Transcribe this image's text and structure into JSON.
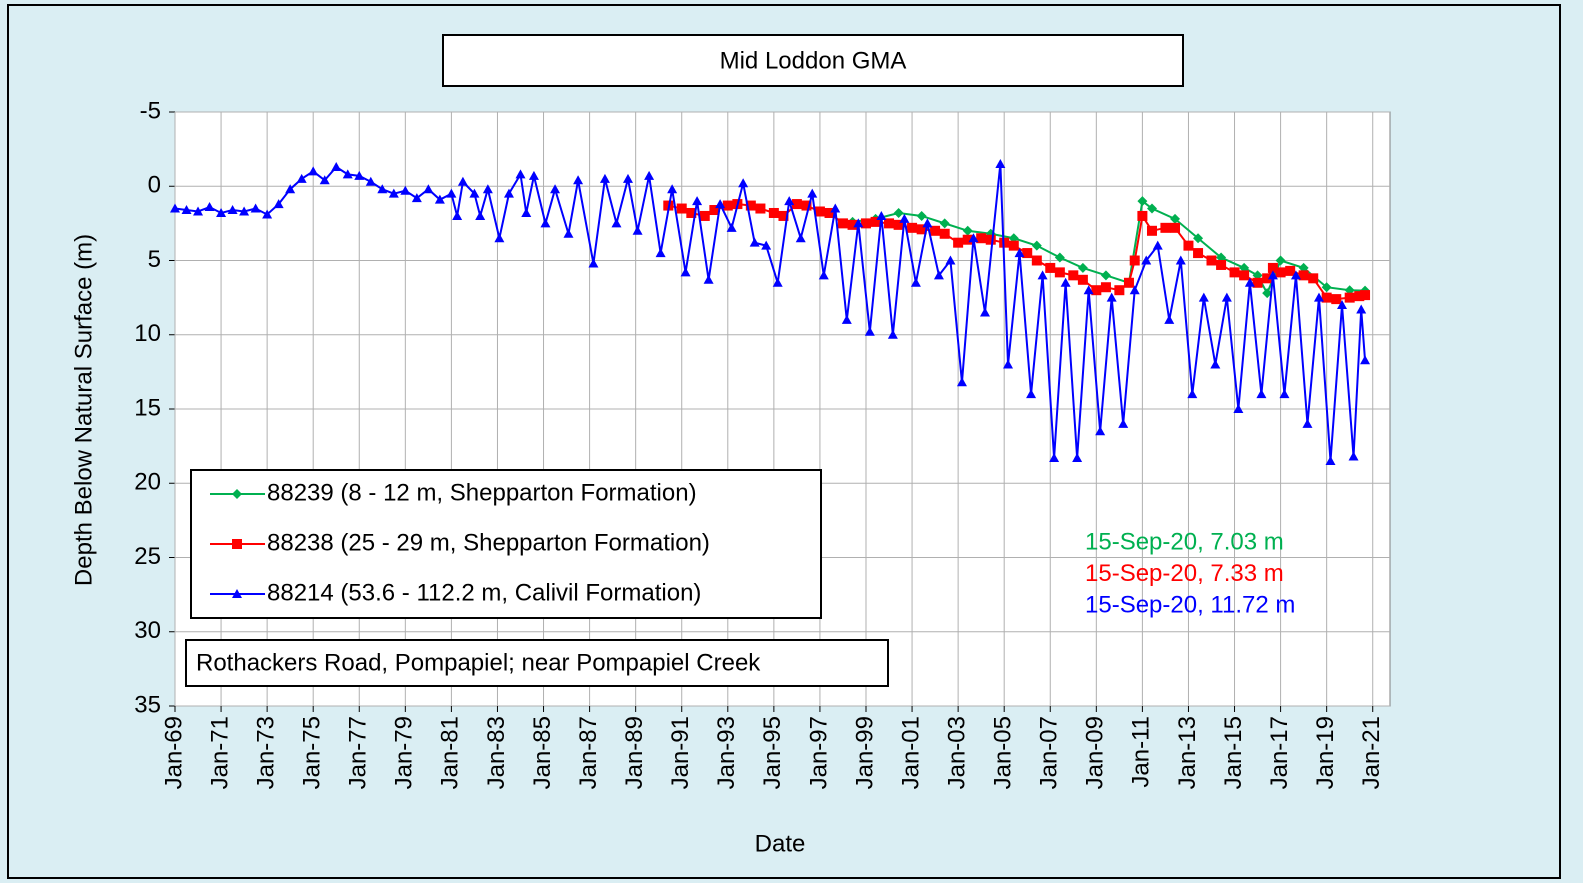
{
  "chart_data": {
    "type": "line",
    "title": "Mid Loddon GMA",
    "xlabel": "Date",
    "ylabel": "Depth Below Natural Surface (m)",
    "location_note": "Rothackers Road, Pompapiel;  near Pompapiel Creek",
    "y_inverted": true,
    "grid": true,
    "legend": "lower left",
    "xlim": [
      "1969-01",
      "2021-10"
    ],
    "ylim": [
      -5,
      35
    ],
    "yticks": [
      -5,
      0,
      5,
      10,
      15,
      20,
      25,
      30,
      35
    ],
    "xticks": [
      {
        "value": "1969-01",
        "label": "Jan-69"
      },
      {
        "value": "1971-01",
        "label": "Jan-71"
      },
      {
        "value": "1973-01",
        "label": "Jan-73"
      },
      {
        "value": "1975-01",
        "label": "Jan-75"
      },
      {
        "value": "1977-01",
        "label": "Jan-77"
      },
      {
        "value": "1979-01",
        "label": "Jan-79"
      },
      {
        "value": "1981-01",
        "label": "Jan-81"
      },
      {
        "value": "1983-01",
        "label": "Jan-83"
      },
      {
        "value": "1985-01",
        "label": "Jan-85"
      },
      {
        "value": "1987-01",
        "label": "Jan-87"
      },
      {
        "value": "1989-01",
        "label": "Jan-89"
      },
      {
        "value": "1991-01",
        "label": "Jan-91"
      },
      {
        "value": "1993-01",
        "label": "Jan-93"
      },
      {
        "value": "1995-01",
        "label": "Jan-95"
      },
      {
        "value": "1997-01",
        "label": "Jan-97"
      },
      {
        "value": "1999-01",
        "label": "Jan-99"
      },
      {
        "value": "2001-01",
        "label": "Jan-01"
      },
      {
        "value": "2003-01",
        "label": "Jan-03"
      },
      {
        "value": "2005-01",
        "label": "Jan-05"
      },
      {
        "value": "2007-01",
        "label": "Jan-07"
      },
      {
        "value": "2009-01",
        "label": "Jan-09"
      },
      {
        "value": "2011-01",
        "label": "Jan-11"
      },
      {
        "value": "2013-01",
        "label": "Jan-13"
      },
      {
        "value": "2015-01",
        "label": "Jan-15"
      },
      {
        "value": "2017-01",
        "label": "Jan-17"
      },
      {
        "value": "2019-01",
        "label": "Jan-19"
      },
      {
        "value": "2021-01",
        "label": "Jan-21"
      }
    ],
    "annotations": [
      {
        "text": "15-Sep-20, 7.03 m",
        "color": "#00b050"
      },
      {
        "text": "15-Sep-20, 7.33 m",
        "color": "#ff0000"
      },
      {
        "text": "15-Sep-20, 11.72 m",
        "color": "#0000ff"
      }
    ],
    "series": [
      {
        "name": "88239 (8 - 12 m, Shepparton Formation)",
        "color": "#00b050",
        "marker": "diamond",
        "x": [
          "1998-06",
          "1999-06",
          "2000-06",
          "2001-06",
          "2002-06",
          "2003-06",
          "2004-06",
          "2005-06",
          "2006-06",
          "2007-06",
          "2008-06",
          "2009-06",
          "2010-06",
          "2011-01",
          "2011-06",
          "2012-06",
          "2013-06",
          "2014-06",
          "2015-06",
          "2016-01",
          "2016-06",
          "2017-01",
          "2018-01",
          "2019-01",
          "2020-01",
          "2020-09"
        ],
        "values": [
          2.4,
          2.2,
          1.8,
          2.0,
          2.5,
          3.0,
          3.2,
          3.5,
          4.0,
          4.8,
          5.5,
          6.0,
          6.5,
          1.0,
          1.5,
          2.2,
          3.5,
          4.8,
          5.5,
          6.0,
          7.2,
          5.0,
          5.5,
          6.8,
          7.0,
          7.03
        ]
      },
      {
        "name": "88238 (25 - 29 m, Shepparton Formation)",
        "color": "#ff0000",
        "marker": "square",
        "x": [
          "1990-06",
          "1991-01",
          "1991-06",
          "1992-01",
          "1992-06",
          "1993-01",
          "1993-06",
          "1994-01",
          "1994-06",
          "1995-01",
          "1995-06",
          "1996-01",
          "1996-06",
          "1997-01",
          "1997-06",
          "1998-01",
          "1998-06",
          "1999-01",
          "1999-06",
          "2000-01",
          "2000-06",
          "2001-01",
          "2001-06",
          "2002-01",
          "2002-06",
          "2003-01",
          "2003-06",
          "2004-01",
          "2004-06",
          "2005-01",
          "2005-06",
          "2006-01",
          "2006-06",
          "2007-01",
          "2007-06",
          "2008-01",
          "2008-06",
          "2009-01",
          "2009-06",
          "2010-01",
          "2010-06",
          "2010-09",
          "2011-01",
          "2011-06",
          "2012-01",
          "2012-06",
          "2013-01",
          "2013-06",
          "2014-01",
          "2014-06",
          "2015-01",
          "2015-06",
          "2016-01",
          "2016-06",
          "2016-09",
          "2017-01",
          "2017-06",
          "2018-01",
          "2018-06",
          "2019-01",
          "2019-06",
          "2020-01",
          "2020-06",
          "2020-09"
        ],
        "values": [
          1.3,
          1.5,
          1.8,
          2.0,
          1.6,
          1.3,
          1.2,
          1.3,
          1.5,
          1.8,
          2.0,
          1.2,
          1.3,
          1.7,
          1.8,
          2.5,
          2.6,
          2.5,
          2.4,
          2.5,
          2.6,
          2.8,
          2.9,
          3.0,
          3.2,
          3.8,
          3.6,
          3.5,
          3.6,
          3.8,
          4.0,
          4.5,
          5.0,
          5.5,
          5.8,
          6.0,
          6.3,
          7.0,
          6.8,
          7.0,
          6.5,
          5.0,
          2.0,
          3.0,
          2.8,
          2.8,
          4.0,
          4.5,
          5.0,
          5.3,
          5.8,
          6.0,
          6.5,
          6.2,
          5.5,
          5.8,
          5.7,
          6.0,
          6.2,
          7.5,
          7.6,
          7.5,
          7.4,
          7.33
        ]
      },
      {
        "name": "88214 (53.6 - 112.2 m, Calivil Formation)",
        "color": "#0000ff",
        "marker": "triangle",
        "x": [
          "1969-01",
          "1969-07",
          "1970-01",
          "1970-07",
          "1971-01",
          "1971-07",
          "1972-01",
          "1972-07",
          "1973-01",
          "1973-07",
          "1974-01",
          "1974-07",
          "1975-01",
          "1975-07",
          "1976-01",
          "1976-07",
          "1977-01",
          "1977-07",
          "1978-01",
          "1978-07",
          "1979-01",
          "1979-07",
          "1980-01",
          "1980-07",
          "1981-01",
          "1981-04",
          "1981-07",
          "1982-01",
          "1982-04",
          "1982-08",
          "1983-02",
          "1983-07",
          "1984-01",
          "1984-04",
          "1984-08",
          "1985-02",
          "1985-07",
          "1986-02",
          "1986-07",
          "1987-03",
          "1987-09",
          "1988-03",
          "1988-09",
          "1989-02",
          "1989-08",
          "1990-02",
          "1990-08",
          "1991-03",
          "1991-09",
          "1992-03",
          "1992-09",
          "1993-03",
          "1993-09",
          "1994-03",
          "1994-09",
          "1995-03",
          "1995-09",
          "1996-03",
          "1996-09",
          "1997-03",
          "1997-09",
          "1998-03",
          "1998-09",
          "1999-03",
          "1999-09",
          "2000-03",
          "2000-09",
          "2001-03",
          "2001-09",
          "2002-03",
          "2002-09",
          "2003-03",
          "2003-09",
          "2004-03",
          "2004-11",
          "2005-03",
          "2005-09",
          "2006-03",
          "2006-09",
          "2007-03",
          "2007-09",
          "2008-03",
          "2008-09",
          "2009-03",
          "2009-09",
          "2010-03",
          "2010-09",
          "2011-03",
          "2011-09",
          "2012-03",
          "2012-09",
          "2013-03",
          "2013-09",
          "2014-03",
          "2014-09",
          "2015-03",
          "2015-09",
          "2016-03",
          "2016-09",
          "2017-03",
          "2017-09",
          "2018-03",
          "2018-09",
          "2019-03",
          "2019-09",
          "2020-03",
          "2020-07",
          "2020-09"
        ],
        "values": [
          1.5,
          1.6,
          1.7,
          1.4,
          1.8,
          1.6,
          1.7,
          1.5,
          1.9,
          1.2,
          0.2,
          -0.5,
          -1.0,
          -0.4,
          -1.3,
          -0.8,
          -0.7,
          -0.3,
          0.2,
          0.5,
          0.3,
          0.8,
          0.2,
          0.9,
          0.5,
          2.0,
          -0.3,
          0.5,
          2.0,
          0.2,
          3.5,
          0.5,
          -0.8,
          1.8,
          -0.7,
          2.5,
          0.2,
          3.2,
          -0.4,
          5.2,
          -0.5,
          2.5,
          -0.5,
          3.0,
          -0.7,
          4.5,
          0.2,
          5.8,
          1.0,
          6.3,
          1.2,
          2.8,
          -0.2,
          3.8,
          4.0,
          6.5,
          1.0,
          3.5,
          0.5,
          6.0,
          1.5,
          9.0,
          2.5,
          9.8,
          2.0,
          10.0,
          2.2,
          6.5,
          2.5,
          6.0,
          5.0,
          13.2,
          3.5,
          8.5,
          -1.5,
          12.0,
          4.5,
          14.0,
          6.0,
          18.3,
          6.5,
          18.3,
          7.0,
          16.5,
          7.5,
          16.0,
          7.0,
          5.0,
          4.0,
          9.0,
          5.0,
          14.0,
          7.5,
          12.0,
          7.5,
          15.0,
          6.5,
          14.0,
          6.0,
          14.0,
          6.0,
          16.0,
          7.5,
          18.5,
          8.0,
          18.2,
          8.3,
          11.72
        ]
      }
    ]
  }
}
